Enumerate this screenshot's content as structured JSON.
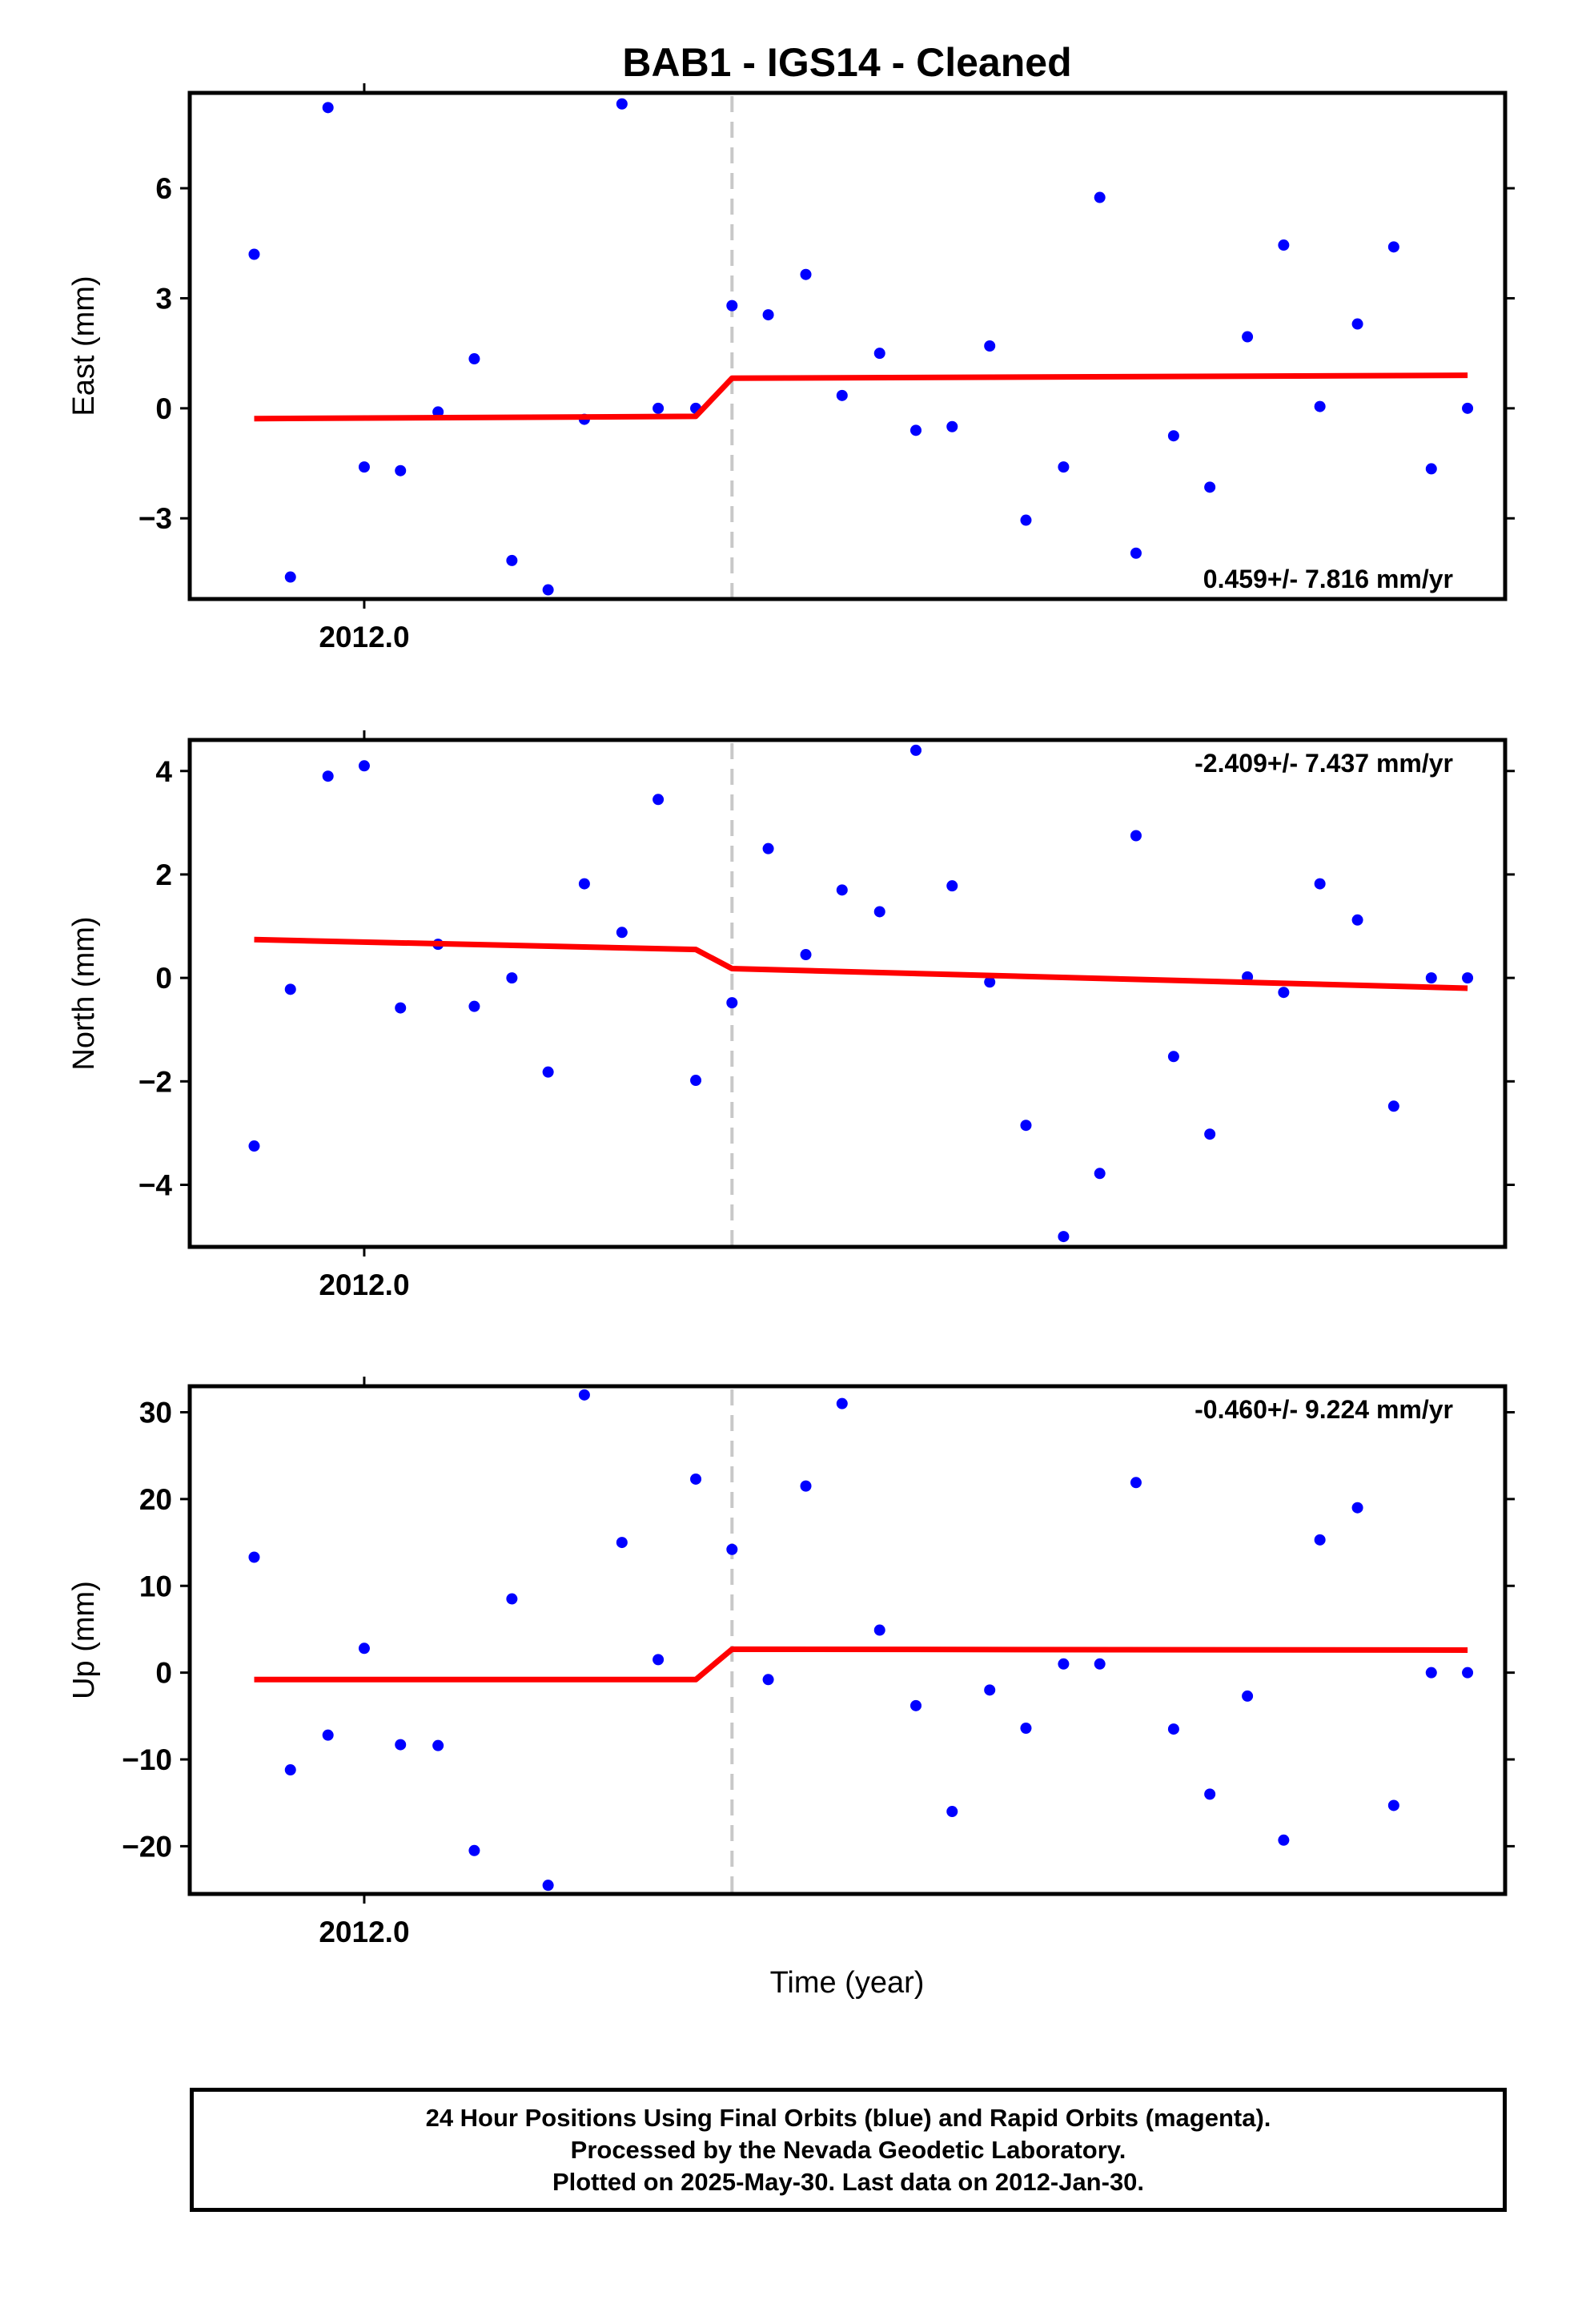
{
  "title": "BAB1  - IGS14 - Cleaned",
  "xlabel": "Time (year)",
  "footer": {
    "line1": "24 Hour Positions Using Final Orbits (blue) and Rapid Orbits (magenta).",
    "line2": "Processed by the Nevada Geodetic Laboratory.",
    "line3": "Plotted on 2025-May-30. Last data on 2012-Jan-30."
  },
  "colors": {
    "points": "#0000ff",
    "fit": "#ff0000",
    "offset_line": "#c8c8c8",
    "frame": "#000000"
  },
  "chart_data": [
    {
      "type": "scatter",
      "name": "East",
      "ylabel": "East (mm)",
      "xtick_label": "2012.0",
      "xtick_value": 2012.0,
      "xlim": [
        2011.987,
        2012.085
      ],
      "ylim": [
        -5.2,
        8.6
      ],
      "yticks": [
        {
          "value": -3,
          "label": "−3"
        },
        {
          "value": 0,
          "label": "0"
        },
        {
          "value": 3,
          "label": "3"
        },
        {
          "value": 6,
          "label": "6"
        }
      ],
      "rate": "0.459+/- 7.816 mm/yr",
      "rate_position": "bottom-right",
      "offset_epoch": 2012.0274,
      "x": [
        2011.9918,
        2011.9945,
        2011.9973,
        2012.0,
        2012.0027,
        2012.0055,
        2012.0082,
        2012.011,
        2012.0137,
        2012.0164,
        2012.0192,
        2012.0219,
        2012.0247,
        2012.0274,
        2012.0301,
        2012.0329,
        2012.0356,
        2012.0384,
        2012.0411,
        2012.0438,
        2012.0466,
        2012.0493,
        2012.0521,
        2012.0548,
        2012.0575,
        2012.0603,
        2012.063,
        2012.0658,
        2012.0685,
        2012.0712,
        2012.074,
        2012.0767,
        2012.0795,
        2012.0822
      ],
      "values": [
        4.2,
        -4.6,
        8.2,
        -1.6,
        -1.7,
        -0.1,
        1.35,
        -4.15,
        -4.95,
        -0.3,
        8.3,
        0.0,
        0.0,
        2.8,
        2.55,
        3.65,
        0.35,
        1.5,
        -0.6,
        -0.5,
        1.7,
        -3.05,
        -1.6,
        5.75,
        -3.95,
        -0.75,
        -2.15,
        1.95,
        4.45,
        0.05,
        2.3,
        4.4,
        -1.65,
        0.0
      ],
      "fit": {
        "x": [
          2011.9918,
          2012.0247,
          2012.0274,
          2012.0822
        ],
        "y": [
          -0.28,
          -0.22,
          0.82,
          0.9
        ]
      }
    },
    {
      "type": "scatter",
      "name": "North",
      "ylabel": "North (mm)",
      "xtick_label": "2012.0",
      "xtick_value": 2012.0,
      "xlim": [
        2011.987,
        2012.085
      ],
      "ylim": [
        -5.2,
        4.6
      ],
      "yticks": [
        {
          "value": -4,
          "label": "−4"
        },
        {
          "value": -2,
          "label": "−2"
        },
        {
          "value": 0,
          "label": "0"
        },
        {
          "value": 2,
          "label": "2"
        },
        {
          "value": 4,
          "label": "4"
        }
      ],
      "rate": "-2.409+/- 7.437 mm/yr",
      "rate_position": "top-right",
      "offset_epoch": 2012.0274,
      "x": [
        2011.9918,
        2011.9945,
        2011.9973,
        2012.0,
        2012.0027,
        2012.0055,
        2012.0082,
        2012.011,
        2012.0137,
        2012.0164,
        2012.0192,
        2012.0219,
        2012.0247,
        2012.0274,
        2012.0301,
        2012.0329,
        2012.0356,
        2012.0384,
        2012.0411,
        2012.0438,
        2012.0466,
        2012.0493,
        2012.0521,
        2012.0548,
        2012.0575,
        2012.0603,
        2012.063,
        2012.0658,
        2012.0685,
        2012.0712,
        2012.074,
        2012.0767,
        2012.0795,
        2012.0822
      ],
      "values": [
        -3.25,
        -0.22,
        3.9,
        4.1,
        -0.58,
        0.65,
        -0.55,
        0.0,
        -1.82,
        1.82,
        0.88,
        3.45,
        -1.98,
        -0.48,
        2.5,
        0.45,
        1.7,
        1.28,
        4.4,
        1.78,
        -0.08,
        -2.85,
        -5.0,
        -3.78,
        2.75,
        -1.52,
        -3.02,
        0.02,
        -0.28,
        1.82,
        1.12,
        -2.48,
        0.0,
        0.0
      ],
      "fit": {
        "x": [
          2011.9918,
          2012.0247,
          2012.0274,
          2012.0822
        ],
        "y": [
          0.74,
          0.55,
          0.18,
          -0.2
        ]
      }
    },
    {
      "type": "scatter",
      "name": "Up",
      "ylabel": "Up (mm)",
      "xtick_label": "2012.0",
      "xtick_value": 2012.0,
      "xlim": [
        2011.987,
        2012.085
      ],
      "ylim": [
        -25.5,
        33.0
      ],
      "yticks": [
        {
          "value": -20,
          "label": "−20"
        },
        {
          "value": -10,
          "label": "−10"
        },
        {
          "value": 0,
          "label": "0"
        },
        {
          "value": 10,
          "label": "10"
        },
        {
          "value": 20,
          "label": "20"
        },
        {
          "value": 30,
          "label": "30"
        }
      ],
      "rate": "-0.460+/- 9.224 mm/yr",
      "rate_position": "top-right",
      "offset_epoch": 2012.0274,
      "x": [
        2011.9918,
        2011.9945,
        2011.9973,
        2012.0,
        2012.0027,
        2012.0055,
        2012.0082,
        2012.011,
        2012.0137,
        2012.0164,
        2012.0192,
        2012.0219,
        2012.0247,
        2012.0274,
        2012.0301,
        2012.0329,
        2012.0356,
        2012.0384,
        2012.0411,
        2012.0438,
        2012.0466,
        2012.0493,
        2012.0521,
        2012.0548,
        2012.0575,
        2012.0603,
        2012.063,
        2012.0658,
        2012.0685,
        2012.0712,
        2012.074,
        2012.0767,
        2012.0795,
        2012.0822
      ],
      "values": [
        13.3,
        -11.2,
        -7.2,
        2.8,
        -8.3,
        -8.4,
        -20.5,
        8.5,
        -24.5,
        32.0,
        15.0,
        1.5,
        22.3,
        14.2,
        -0.8,
        21.5,
        31.0,
        4.9,
        -3.8,
        -16.0,
        -2.0,
        -6.4,
        1.0,
        1.0,
        21.9,
        -6.5,
        -14.0,
        -2.7,
        -19.3,
        15.3,
        19.0,
        -15.3,
        0.0,
        0.0
      ],
      "fit": {
        "x": [
          2011.9918,
          2012.0247,
          2012.0274,
          2012.0822
        ],
        "y": [
          -0.8,
          -0.8,
          2.7,
          2.6
        ]
      }
    }
  ]
}
